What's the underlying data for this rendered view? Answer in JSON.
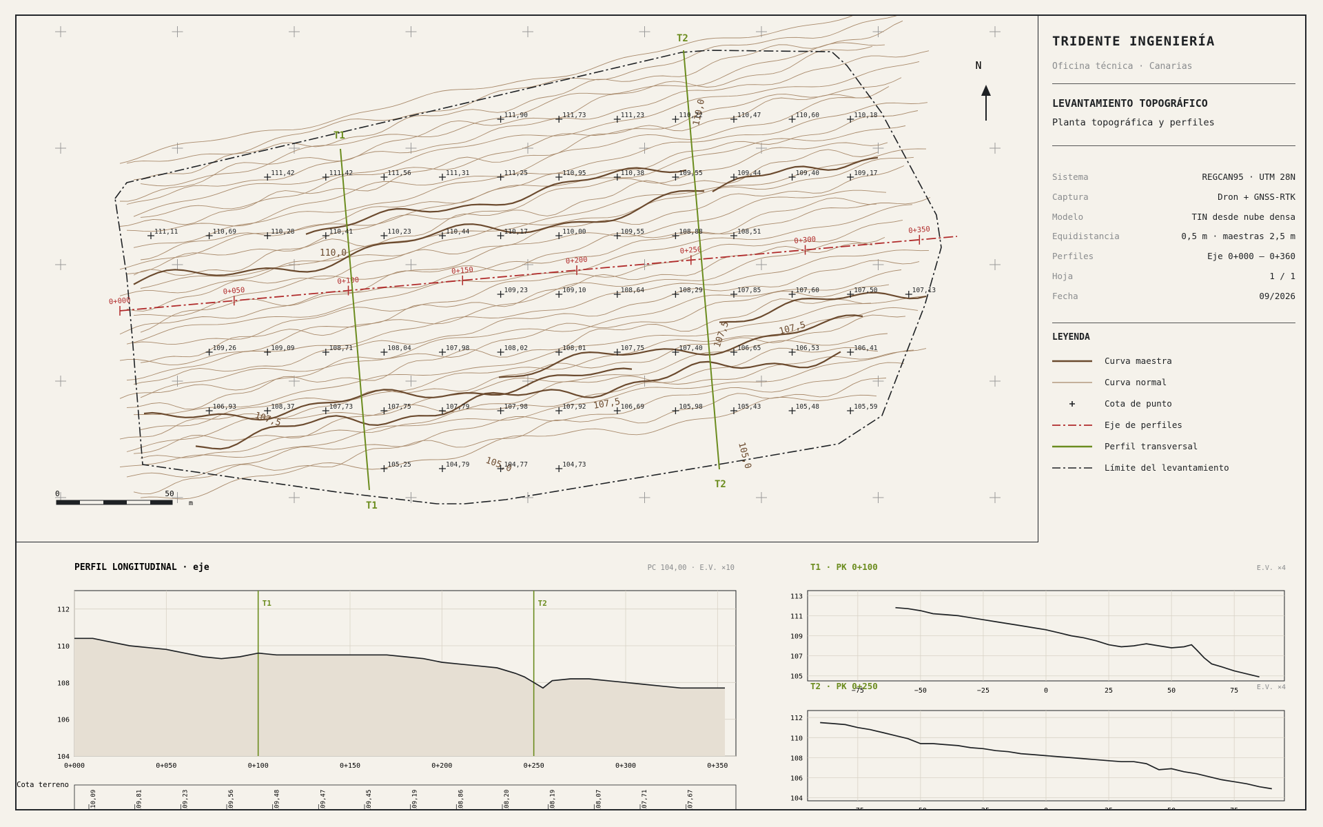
{
  "firm": {
    "name": "TRIDENTE INGENIERÍA",
    "office": "Oficina técnica · Canarias"
  },
  "sheet_title": "LEVANTAMIENTO TOPOGRÁFICO",
  "sheet_subtitle": "Planta topográfica y perfiles",
  "meta": [
    {
      "k": "Sistema",
      "v": "REGCAN95 · UTM 28N"
    },
    {
      "k": "Captura",
      "v": "Dron + GNSS-RTK"
    },
    {
      "k": "Modelo",
      "v": "TIN desde nube densa"
    },
    {
      "k": "Equidistancia",
      "v": "0,5 m · maestras 2,5 m"
    },
    {
      "k": "Perfiles",
      "v": "Eje 0+000 – 0+360"
    },
    {
      "k": "Hoja",
      "v": "1 / 1"
    },
    {
      "k": "Fecha",
      "v": "09/2026"
    }
  ],
  "legend": {
    "title": "LEYENDA",
    "items": [
      {
        "icon": "master-contour",
        "label": "Curva maestra",
        "color": "#6b4a2e"
      },
      {
        "icon": "normal-contour",
        "label": "Curva normal",
        "color": "#a8896a"
      },
      {
        "icon": "spot-height",
        "label": "Cota de punto",
        "color": "#1e2124"
      },
      {
        "icon": "profile-axis",
        "label": "Eje de perfiles",
        "color": "#b02a2a"
      },
      {
        "icon": "cross-section",
        "label": "Perfil transversal",
        "color": "#6b8c1e"
      },
      {
        "icon": "survey-boundary",
        "label": "Límite del levantamiento",
        "color": "#1e2124"
      }
    ]
  },
  "map": {
    "north": "N",
    "scale": {
      "start": "0",
      "end": "50",
      "unit": "m"
    },
    "contour_labels": [
      "110,0",
      "110,0",
      "107,5",
      "107,5",
      "107,5",
      "107,5",
      "105,0",
      "105,0"
    ],
    "axis_stations": [
      "0+000",
      "0+050",
      "0+100",
      "0+150",
      "0+200",
      "0+250",
      "0+300",
      "0+350"
    ],
    "sections": [
      {
        "name": "T1",
        "label_top": "T1",
        "label_bottom": "T1"
      },
      {
        "name": "T2",
        "label_top": "T2",
        "label_bottom": "T2"
      }
    ],
    "spot_heights": [
      {
        "row": 1,
        "values": [
          "111,90",
          "111,73",
          "111,23",
          "110,22",
          "110,47",
          "110,60",
          "110,18"
        ]
      },
      {
        "row": 2,
        "values": [
          "111,42",
          "111,42",
          "111,56",
          "111,31",
          "111,25",
          "110,95",
          "110,38",
          "109,55",
          "109,44",
          "109,40",
          "109,17"
        ]
      },
      {
        "row": 3,
        "values": [
          "111,11",
          "110,69",
          "110,28",
          "110,41",
          "110,23",
          "110,44",
          "110,17",
          "110,00",
          "109,55",
          "108,88",
          "108,51"
        ]
      },
      {
        "row": 4,
        "values": [
          "109,23",
          "109,10",
          "108,64",
          "108,29",
          "107,85",
          "107,60",
          "107,50",
          "107,13"
        ]
      },
      {
        "row": 5,
        "values": [
          "109,26",
          "109,09",
          "108,71",
          "108,04",
          "107,98",
          "108,02",
          "108,01",
          "107,75",
          "107,40",
          "106,65",
          "106,53",
          "106,41"
        ]
      },
      {
        "row": 6,
        "values": [
          "106,93",
          "108,37",
          "107,73",
          "107,75",
          "107,79",
          "107,98",
          "107,92",
          "106,69",
          "105,98",
          "105,43",
          "105,48",
          "105,59"
        ]
      },
      {
        "row": 7,
        "values": [
          "105,25",
          "104,79",
          "104,77",
          "104,73"
        ]
      }
    ]
  },
  "long_profile": {
    "title": "PERFIL LONGITUDINAL · eje",
    "note": "PC 104,00 · E.V. ×10",
    "row_label": "Cota terreno",
    "markers": [
      "T1",
      "T2"
    ],
    "marker_stations": [
      100,
      250
    ],
    "x_ticks": [
      "0+000",
      "0+050",
      "0+100",
      "0+150",
      "0+200",
      "0+250",
      "0+300",
      "0+350"
    ],
    "y_ticks": [
      "104",
      "106",
      "108",
      "110",
      "112"
    ],
    "cota_values": [
      "110,09",
      "109,81",
      "109,23",
      "109,56",
      "109,48",
      "109,47",
      "109,45",
      "109,19",
      "108,86",
      "108,20",
      "108,19",
      "108,07",
      "107,71",
      "107,67"
    ]
  },
  "cross_sections": [
    {
      "title": "T1 · PK 0+100",
      "note": "E.V. ×4",
      "y_ticks": [
        "105",
        "107",
        "109",
        "111",
        "113"
      ],
      "x_ticks": [
        "−75",
        "−50",
        "−25",
        "0",
        "25",
        "50",
        "75"
      ]
    },
    {
      "title": "T2 · PK 0+250",
      "note": "E.V. ×4",
      "y_ticks": [
        "104",
        "106",
        "108",
        "110",
        "112"
      ],
      "x_ticks": [
        "−75",
        "−50",
        "−25",
        "0",
        "25",
        "50",
        "75"
      ]
    }
  ],
  "chart_data": [
    {
      "type": "line",
      "x": [
        0,
        10,
        20,
        30,
        40,
        50,
        60,
        70,
        80,
        90,
        100,
        110,
        120,
        130,
        140,
        150,
        160,
        170,
        180,
        190,
        200,
        210,
        220,
        230,
        240,
        245,
        250,
        255,
        260,
        270,
        280,
        290,
        300,
        310,
        320,
        330,
        340,
        350,
        354
      ],
      "series": [
        {
          "values": [
            110.4,
            110.4,
            110.2,
            110.0,
            109.9,
            109.8,
            109.6,
            109.4,
            109.3,
            109.4,
            109.6,
            109.5,
            109.5,
            109.5,
            109.5,
            109.5,
            109.5,
            109.5,
            109.4,
            109.3,
            109.1,
            109.0,
            108.9,
            108.8,
            108.5,
            108.3,
            108.0,
            107.7,
            108.1,
            108.2,
            108.2,
            108.1,
            108.0,
            107.9,
            107.8,
            107.7,
            107.7,
            107.7,
            107.7
          ]
        }
      ],
      "xlabel": "",
      "ylabel": "",
      "xlim": [
        0,
        360
      ],
      "ylim": [
        104,
        113
      ]
    },
    {
      "type": "line",
      "x": [
        -60,
        -55,
        -50,
        -45,
        -40,
        -35,
        -30,
        -25,
        -20,
        -15,
        -10,
        -5,
        0,
        5,
        10,
        15,
        20,
        25,
        30,
        35,
        40,
        45,
        50,
        55,
        58,
        60,
        63,
        66,
        70,
        75,
        80,
        85
      ],
      "series": [
        {
          "values": [
            111.8,
            111.7,
            111.5,
            111.2,
            111.1,
            111.0,
            110.8,
            110.6,
            110.4,
            110.2,
            110.0,
            109.8,
            109.6,
            109.3,
            109.0,
            108.8,
            108.5,
            108.1,
            107.9,
            108.0,
            108.2,
            108.0,
            107.8,
            107.9,
            108.1,
            107.6,
            106.8,
            106.2,
            105.9,
            105.5,
            105.2,
            104.9
          ]
        }
      ],
      "xlabel": "",
      "ylabel": "",
      "xlim": [
        -95,
        95
      ],
      "ylim": [
        104.5,
        113.5
      ]
    },
    {
      "type": "line",
      "x": [
        -90,
        -85,
        -80,
        -75,
        -70,
        -65,
        -60,
        -55,
        -50,
        -45,
        -40,
        -35,
        -30,
        -25,
        -20,
        -15,
        -10,
        -5,
        0,
        5,
        10,
        15,
        20,
        25,
        30,
        35,
        40,
        45,
        50,
        55,
        60,
        65,
        70,
        75,
        80,
        85,
        90
      ],
      "series": [
        {
          "values": [
            111.5,
            111.4,
            111.3,
            111.0,
            110.8,
            110.5,
            110.2,
            109.9,
            109.4,
            109.4,
            109.3,
            109.2,
            109.0,
            108.9,
            108.7,
            108.6,
            108.4,
            108.3,
            108.2,
            108.1,
            108.0,
            107.9,
            107.8,
            107.7,
            107.6,
            107.6,
            107.4,
            106.8,
            106.9,
            106.6,
            106.4,
            106.1,
            105.8,
            105.6,
            105.4,
            105.1,
            104.9
          ]
        }
      ],
      "xlabel": "",
      "ylabel": "",
      "xlim": [
        -95,
        95
      ],
      "ylim": [
        103.7,
        112.7
      ]
    }
  ],
  "colors": {
    "master": "#6b4a2e",
    "normal": "#a8896a",
    "axis": "#b02a2a",
    "section": "#6b8c1e",
    "ink": "#1e2124",
    "fill": "#e6dfd3"
  }
}
